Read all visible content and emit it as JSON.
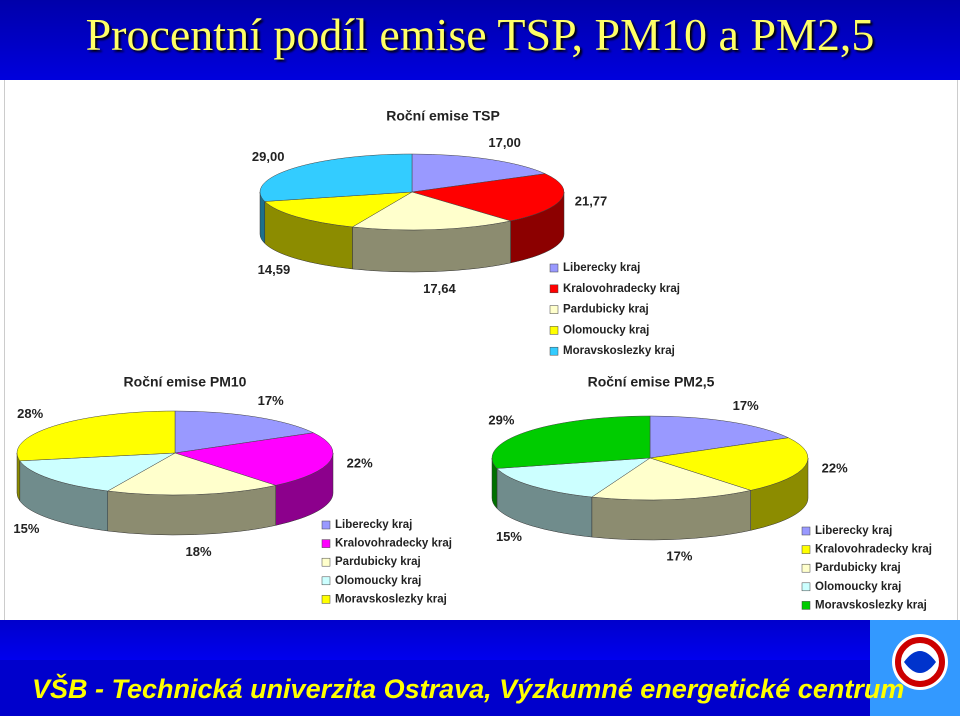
{
  "slide": {
    "title": "Procentní podíl emise TSP, PM10 a PM2,5",
    "footer": "VŠB - Technická univerzita Ostrava, Výzkumné energetické centrum"
  },
  "chart_data": [
    {
      "type": "pie",
      "title": "Roční emise TSP",
      "categories": [
        "Liberecky kraj",
        "Kralovohradecky kraj",
        "Pardubicky kraj",
        "Olomoucky kraj",
        "Moravskoslezky kraj"
      ],
      "values": [
        17,
        21.77,
        17.64,
        14.59,
        29
      ],
      "value_labels": [
        "17,00",
        "21,77",
        "17,64",
        "14,59",
        "29,00"
      ],
      "colors": [
        "#9999ff",
        "#ff0000",
        "#ffffcc",
        "#ffff00",
        "#33ccff"
      ]
    },
    {
      "type": "pie",
      "title": "Roční emise PM10",
      "categories": [
        "Liberecky kraj",
        "Kralovohradecky kraj",
        "Pardubicky kraj",
        "Olomoucky kraj",
        "Moravskoslezky kraj"
      ],
      "values": [
        17,
        22,
        18,
        15,
        28
      ],
      "value_labels": [
        "17%",
        "22%",
        "18%",
        "15%",
        "28%"
      ],
      "colors": [
        "#9999ff",
        "#ff00ff",
        "#ffffcc",
        "#ccffff",
        "#ffff00"
      ]
    },
    {
      "type": "pie",
      "title": "Roční emise PM2,5",
      "categories": [
        "Liberecky kraj",
        "Kralovohradecky kraj",
        "Pardubicky kraj",
        "Olomoucky kraj",
        "Moravskoslezky kraj"
      ],
      "values": [
        17,
        22,
        17,
        15,
        29
      ],
      "value_labels": [
        "17%",
        "22%",
        "17%",
        "15%",
        "29%"
      ],
      "colors": [
        "#9999ff",
        "#ffff00",
        "#ffffcc",
        "#ccffff",
        "#00cc00"
      ]
    }
  ]
}
